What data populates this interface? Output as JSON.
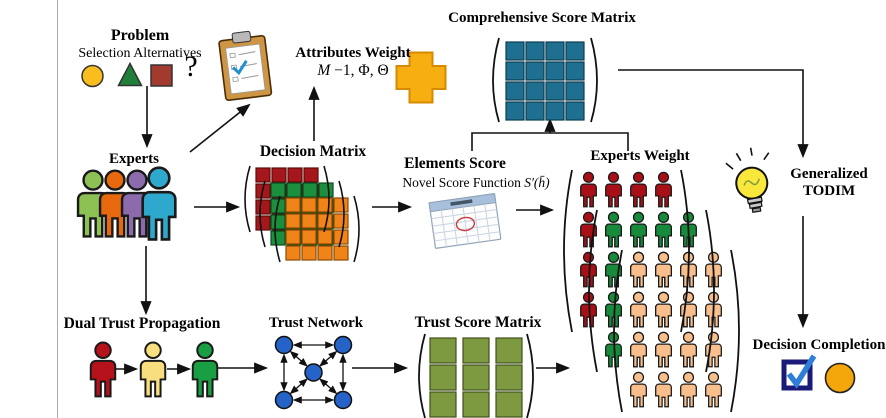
{
  "figure": {
    "problem": {
      "title": "Problem",
      "subtitle": "Selection Alternatives",
      "unknown_mark": "?"
    },
    "attributes_weight": {
      "title": "Attributes Weight",
      "formula_var": "M",
      "formula_rest": " −1, Φ, Θ"
    },
    "comprehensive_matrix": {
      "title": "Comprehensive Score Matrix"
    },
    "experts": {
      "title": "Experts"
    },
    "decision_matrix": {
      "title": "Decision Matrix"
    },
    "elements_score": {
      "title": "Elements Score",
      "subtitle": "Novel Score Function",
      "formula": "S′(h̄)"
    },
    "experts_weight": {
      "title": "Experts Weight"
    },
    "todim": {
      "line1": "Generalized",
      "line2": "TODIM"
    },
    "decision_completion": {
      "title": "Decision Completion"
    },
    "dual_trust": {
      "title": "Dual Trust Propagation"
    },
    "trust_network": {
      "title": "Trust Network"
    },
    "trust_score_matrix": {
      "title": "Trust Score Matrix"
    }
  },
  "colors": {
    "comprehensive_cell": "#1E6F90",
    "decision_cells": [
      "#A6171C",
      "#1B8F3E",
      "#F08418"
    ],
    "trust_cell": "#7D9A41",
    "network_node": "#2563C8",
    "experts": [
      "#8DC153",
      "#E8680E",
      "#8C6BAC",
      "#2FA8CE"
    ],
    "dual_trust_people": [
      "#B5121B",
      "#F8DE7E",
      "#1A9E44"
    ],
    "weight_groups": [
      "#A80F16",
      "#178A3B",
      "#F8BE8C"
    ],
    "plus": "#F6AE11",
    "alternative_shapes": [
      "#FABD1E",
      "#20803A",
      "#A23A2E"
    ],
    "bulb": "#F9E73B",
    "checkbox_border": "#1A1A78",
    "check": "#2E7FD8",
    "decision_circle": "#F4A70B"
  }
}
